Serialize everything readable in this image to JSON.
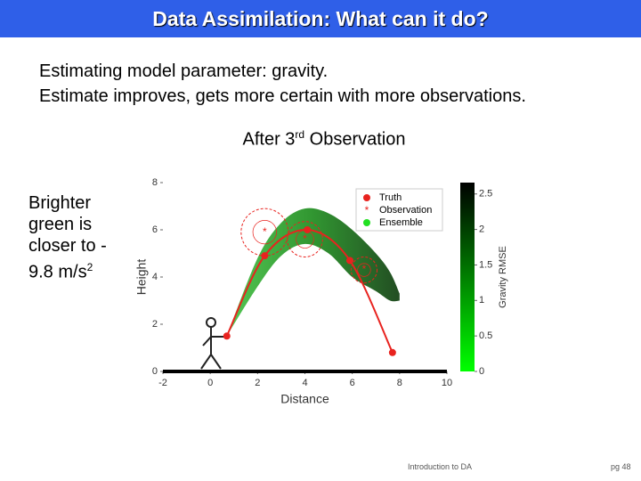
{
  "title": "Data Assimilation: What can it do?",
  "bullets": [
    "Estimating model parameter: gravity.",
    "Estimate improves, gets more certain with more observations."
  ],
  "subtitle": {
    "before": "After 3",
    "sup": "rd",
    "after": " Observation"
  },
  "side_note": {
    "text": "Brighter green is closer to - 9.8 m/s",
    "sup": "2"
  },
  "footer": "Introduction to DA",
  "page_number": "pg 48",
  "chart_data": {
    "type": "line",
    "xlabel": "Distance",
    "ylabel": "Height",
    "xlim": [
      -2,
      10
    ],
    "xticks": [
      -2,
      0,
      2,
      4,
      6,
      8,
      10
    ],
    "ylim": [
      0,
      8
    ],
    "yticks": [
      0,
      2,
      4,
      6,
      8
    ],
    "series": [
      {
        "name": "Truth",
        "color": "#e8231f",
        "x": [
          0.7,
          2.3,
          4.1,
          5.9,
          7.7
        ],
        "values": [
          1.5,
          4.9,
          6.0,
          4.7,
          0.8
        ]
      },
      {
        "name": "Observation",
        "color": "#e8231f",
        "x": [
          2.3,
          4.0,
          6.5
        ],
        "values": [
          5.9,
          5.6,
          4.3
        ],
        "errors": [
          1.0,
          0.75,
          0.55
        ]
      },
      {
        "name": "Ensemble",
        "color": "#22e022",
        "x": [
          0.7,
          2,
          3,
          4,
          5,
          6,
          7,
          7.6,
          8
        ],
        "values": [
          1.5,
          4.8,
          6.3,
          6.9,
          6.7,
          6.0,
          5.0,
          4.2,
          3.3
        ],
        "lower": [
          1.5,
          3.6,
          4.9,
          5.4,
          5.0,
          4.0,
          3.4,
          3.0,
          3.0
        ]
      }
    ],
    "colorbar": {
      "label": "Gravity RMSE",
      "lim": [
        0,
        2.66
      ],
      "ticks": [
        0,
        0.5,
        1,
        1.5,
        2,
        2.5
      ]
    }
  }
}
